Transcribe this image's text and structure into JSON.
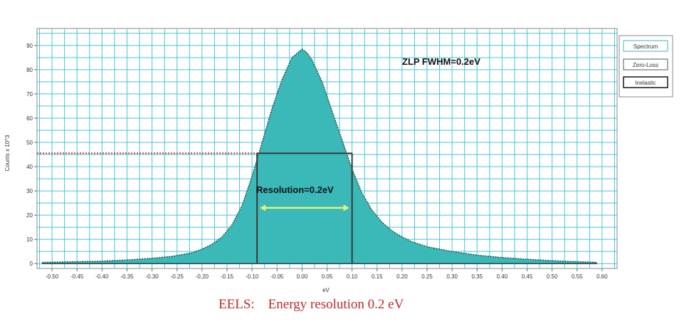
{
  "chart_data": {
    "type": "area",
    "title": "",
    "xlabel": "eV",
    "ylabel": "Counts x 10^3",
    "xlim": [
      -0.53,
      0.63
    ],
    "ylim": [
      -2,
      97
    ],
    "x_ticks": [
      -0.5,
      -0.45,
      -0.4,
      -0.35,
      -0.3,
      -0.25,
      -0.2,
      -0.15,
      -0.1,
      -0.05,
      0.0,
      0.05,
      0.1,
      0.15,
      0.2,
      0.25,
      0.3,
      0.35,
      0.4,
      0.45,
      0.5,
      0.55,
      0.6
    ],
    "x_tick_labels": [
      "-0.50",
      "-0.45",
      "-0.40",
      "-0.35",
      "-0.30",
      "-0.25",
      "-0.20",
      "-0.15",
      "-0.10",
      "-0.05",
      "0.00",
      "0.05",
      "0.10",
      "0.15",
      "0.20",
      "0.25",
      "0.30",
      "0.35",
      "0.40",
      "0.45",
      "0.50",
      "0.55",
      "0.60"
    ],
    "y_ticks": [
      0,
      10,
      20,
      30,
      40,
      50,
      60,
      70,
      80,
      90
    ],
    "y_tick_labels": [
      "0",
      "10",
      "20",
      "30",
      "40",
      "50",
      "60",
      "70",
      "80",
      "90"
    ],
    "grid": true,
    "series": [
      {
        "name": "Spectrum",
        "color": "#3bb8b8",
        "x": [
          -0.52,
          -0.45,
          -0.4,
          -0.35,
          -0.3,
          -0.26,
          -0.22,
          -0.2,
          -0.18,
          -0.16,
          -0.14,
          -0.12,
          -0.1,
          -0.08,
          -0.06,
          -0.04,
          -0.02,
          0.0,
          0.01,
          0.02,
          0.04,
          0.06,
          0.08,
          0.1,
          0.12,
          0.14,
          0.16,
          0.18,
          0.2,
          0.22,
          0.25,
          0.3,
          0.35,
          0.4,
          0.45,
          0.5,
          0.55,
          0.59
        ],
        "y": [
          0.5,
          0.8,
          1.0,
          1.5,
          2.2,
          3.0,
          4.5,
          6.0,
          8.0,
          11.0,
          16.0,
          24.0,
          36.0,
          50.0,
          64.0,
          76.0,
          85.0,
          88.5,
          87.0,
          84.0,
          75.0,
          63.0,
          51.0,
          39.0,
          29.0,
          22.0,
          17.0,
          13.5,
          11.0,
          9.0,
          7.0,
          5.0,
          3.5,
          2.5,
          1.8,
          1.2,
          0.8,
          0.5
        ]
      }
    ],
    "legend": {
      "position": "right",
      "entries": [
        "Spectrum",
        "Zero-Loss",
        "Inelastic"
      ]
    },
    "annotations": {
      "fwhm": "ZLP FWHM=0.2eV",
      "resolution": "Resolution=0.2eV"
    },
    "half_max": 45.5,
    "fwhm_left": -0.09,
    "fwhm_right": 0.1
  },
  "caption": "EELS:    Energy resolution 0.2 eV",
  "colors": {
    "fill": "#3bb8b8",
    "grid": "#49c3d8",
    "half_max_line": "#d43a3a",
    "arrow": "#e8f27a",
    "caption": "#c0282d"
  }
}
